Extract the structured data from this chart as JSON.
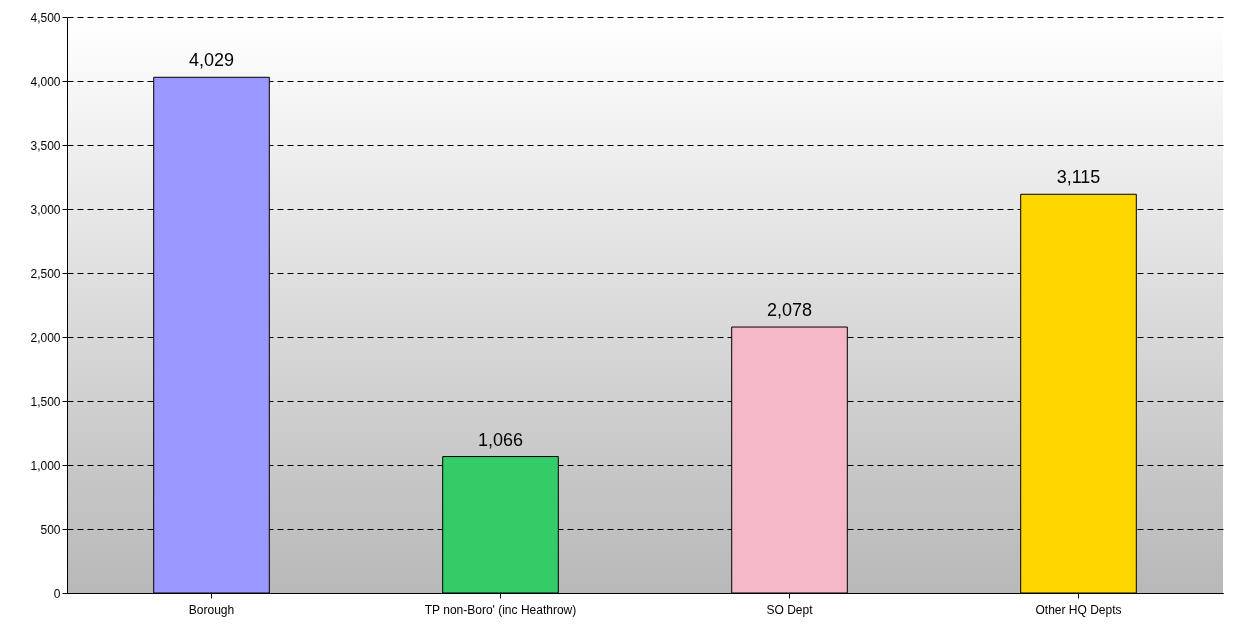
{
  "chart_data": {
    "type": "bar",
    "categories": [
      "Borough",
      "TP non-Boro' (inc Heathrow)",
      "SO Dept",
      "Other HQ Depts"
    ],
    "values": [
      4029,
      1066,
      2078,
      3115
    ],
    "colors": [
      "#9999ff",
      "#33cc66",
      "#f4b8c8",
      "#ffd700"
    ],
    "value_labels": [
      "4,029",
      "1,066",
      "2,078",
      "3,115"
    ],
    "ylim": [
      0,
      4500
    ],
    "yticks": [
      {
        "value": 0,
        "label": "0"
      },
      {
        "value": 500,
        "label": "500"
      },
      {
        "value": 1000,
        "label": "1,000"
      },
      {
        "value": 1500,
        "label": "1,500"
      },
      {
        "value": 2000,
        "label": "2,000"
      },
      {
        "value": 2500,
        "label": "2,500"
      },
      {
        "value": 3000,
        "label": "3,000"
      },
      {
        "value": 3500,
        "label": "3,500"
      },
      {
        "value": 4000,
        "label": "4,000"
      },
      {
        "value": 4500,
        "label": "4,500"
      }
    ],
    "grid": "y"
  }
}
